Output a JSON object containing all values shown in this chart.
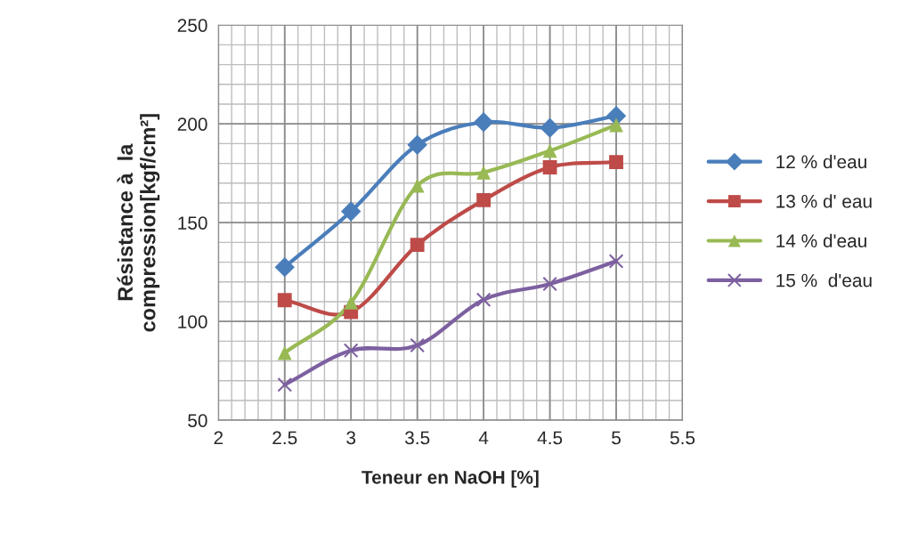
{
  "chart_data": {
    "type": "line",
    "xlabel": "Teneur en NaOH [%]",
    "ylabel": "Résistance à  la\ncompression[kgf/cm²]",
    "x": [
      2.5,
      3,
      3.5,
      4,
      4.5,
      5
    ],
    "series": [
      {
        "name": "12 % d'eau",
        "color": "#4a7ebb",
        "marker": "diamond",
        "values": [
          127.5,
          155.7,
          189.4,
          200.9,
          198,
          204
        ]
      },
      {
        "name": "13 % d' eau",
        "color": "#be4b48",
        "marker": "square",
        "values": [
          110.8,
          104.8,
          138.8,
          161.4,
          178,
          180.7
        ]
      },
      {
        "name": "14 % d'eau",
        "color": "#98b954",
        "marker": "triangle",
        "values": [
          84.1,
          109.6,
          168.7,
          175.4,
          186.4,
          199.4
        ]
      },
      {
        "name": "15 %  d'eau",
        "color": "#7d60a0",
        "marker": "cross",
        "values": [
          68,
          85.3,
          87.9,
          111,
          119,
          130.5
        ]
      }
    ],
    "xlim": [
      2,
      5.5
    ],
    "xticks": [
      2,
      2.5,
      3,
      3.5,
      4,
      4.5,
      5,
      5.5
    ],
    "ylim": [
      50,
      250
    ],
    "yticks": [
      50,
      100,
      150,
      200,
      250
    ],
    "grid": true,
    "legend": "right",
    "line_style": "solid"
  }
}
